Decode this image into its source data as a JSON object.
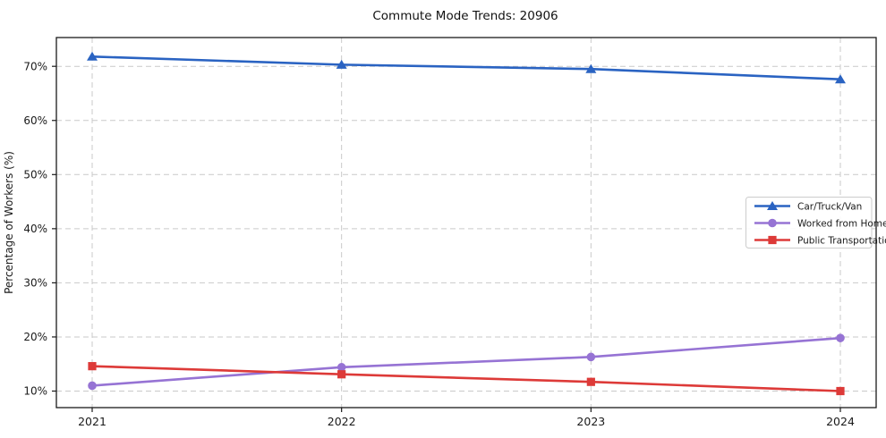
{
  "figure": {
    "title": "Commute Mode Trends: 20906"
  },
  "chart_data": {
    "type": "line",
    "title": "Commute Mode Trends: 20906",
    "xlabel": "",
    "ylabel": "Percentage of Workers (%)",
    "categories": [
      "2021",
      "2022",
      "2023",
      "2024"
    ],
    "series": [
      {
        "name": "Car/Truck/Van",
        "marker": "triangle",
        "color": "#2a63c2",
        "values": [
          71.8,
          70.3,
          69.5,
          67.6
        ]
      },
      {
        "name": "Worked from Home",
        "marker": "circle",
        "color": "#9673d4",
        "values": [
          11.0,
          14.4,
          16.3,
          19.8
        ]
      },
      {
        "name": "Public Transportation",
        "marker": "square",
        "color": "#dd3a38",
        "values": [
          14.6,
          13.1,
          11.7,
          10.0
        ]
      }
    ],
    "ytick_labels": [
      "10%",
      "20%",
      "30%",
      "40%",
      "50%",
      "60%",
      "70%"
    ],
    "ytick_values": [
      10,
      20,
      30,
      40,
      50,
      60,
      70
    ],
    "ylim": [
      6.9,
      75.3
    ],
    "grid": "dashed",
    "legend_position": "center-right",
    "colors": {
      "grid": "#c9c9c9",
      "spine": "#1a1a1a",
      "text": "#1a1a1a",
      "legend_border": "#cccccc",
      "background": "#ffffff"
    }
  }
}
